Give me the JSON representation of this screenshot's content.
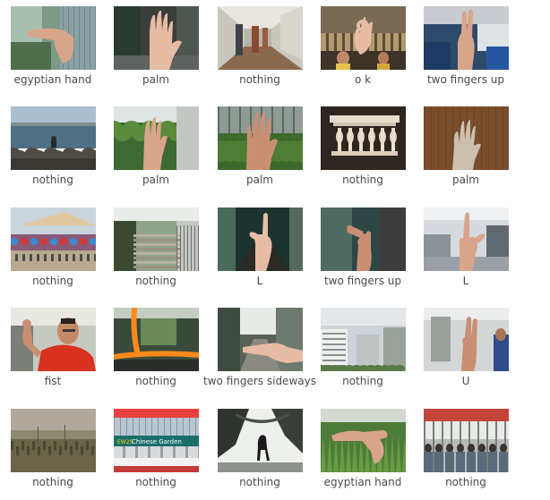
{
  "grid": {
    "rows": [
      [
        {
          "label": "egyptian hand",
          "scene": "hand-horizontal-window"
        },
        {
          "label": "palm",
          "scene": "palm-dark-street"
        },
        {
          "label": "nothing",
          "scene": "corridor"
        },
        {
          "label": "o k",
          "scene": "ok-sign-room"
        },
        {
          "label": "two fingers up",
          "scene": "two-fingers-office"
        }
      ],
      [
        {
          "label": "nothing",
          "scene": "sea-rocks"
        },
        {
          "label": "palm",
          "scene": "palm-greenery"
        },
        {
          "label": "palm",
          "scene": "palm-garden"
        },
        {
          "label": "nothing",
          "scene": "balustrade"
        },
        {
          "label": "palm",
          "scene": "palm-wood"
        }
      ],
      [
        {
          "label": "nothing",
          "scene": "fairground"
        },
        {
          "label": "nothing",
          "scene": "stairs"
        },
        {
          "label": "L",
          "scene": "l-sign-corridor"
        },
        {
          "label": "two fingers up",
          "scene": "two-fingers-hall"
        },
        {
          "label": "L",
          "scene": "l-sign-office"
        }
      ],
      [
        {
          "label": "fist",
          "scene": "person-red-shirt"
        },
        {
          "label": "nothing",
          "scene": "bus-interior"
        },
        {
          "label": "two fingers sideways",
          "scene": "two-fingers-sideways"
        },
        {
          "label": "nothing",
          "scene": "buildings"
        },
        {
          "label": "U",
          "scene": "u-sign-room"
        }
      ],
      [
        {
          "label": "nothing",
          "scene": "dusk-field"
        },
        {
          "label": "nothing",
          "scene": "chinese-garden-sign"
        },
        {
          "label": "nothing",
          "scene": "dog-silhouette"
        },
        {
          "label": "egyptian hand",
          "scene": "hand-horizontal-garden"
        },
        {
          "label": "nothing",
          "scene": "crowd-shelter"
        }
      ]
    ],
    "sign_text": "Chinese Garden",
    "sign_code": "EW25"
  }
}
